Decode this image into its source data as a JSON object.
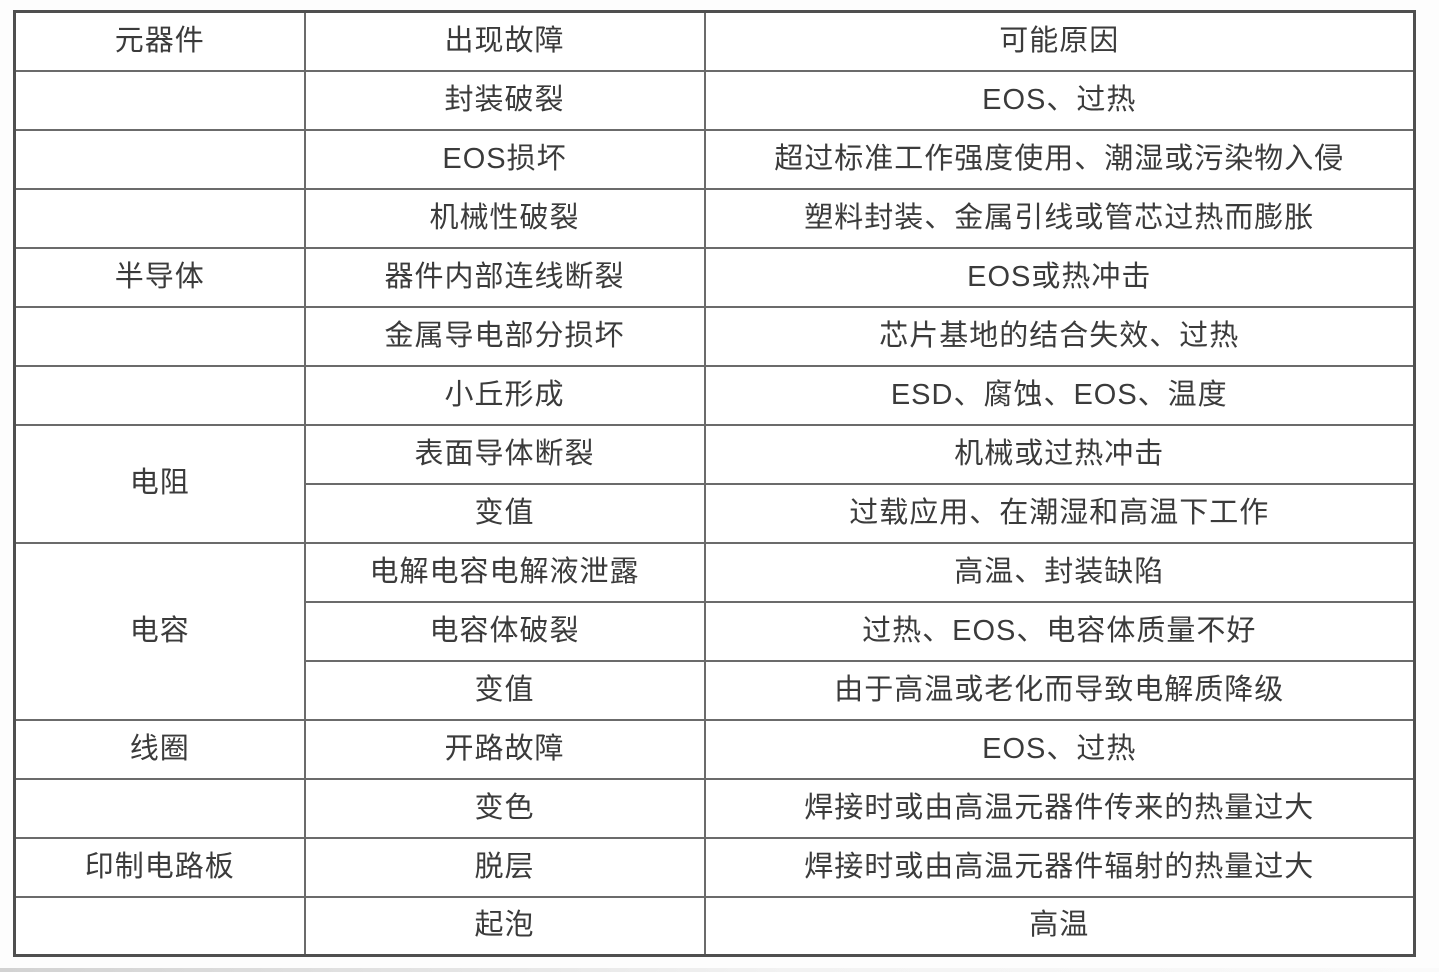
{
  "table": {
    "headers": [
      "元器件",
      "出现故障",
      "可能原因"
    ],
    "groups": [
      {
        "component": "半导体",
        "merged": false,
        "label_row_index": 3,
        "rows": [
          {
            "failure": "封装破裂",
            "cause": "EOS、过热"
          },
          {
            "failure": "EOS损坏",
            "cause": "超过标准工作强度使用、潮湿或污染物入侵"
          },
          {
            "failure": "机械性破裂",
            "cause": "塑料封装、金属引线或管芯过热而膨胀"
          },
          {
            "failure": "器件内部连线断裂",
            "cause": "EOS或热冲击"
          },
          {
            "failure": "金属导电部分损坏",
            "cause": "芯片基地的结合失效、过热"
          },
          {
            "failure": "小丘形成",
            "cause": "ESD、腐蚀、EOS、温度"
          }
        ]
      },
      {
        "component": "电阻",
        "merged": true,
        "label_row_index": 0,
        "rows": [
          {
            "failure": "表面导体断裂",
            "cause": "机械或过热冲击"
          },
          {
            "failure": "变值",
            "cause": "过载应用、在潮湿和高温下工作"
          }
        ]
      },
      {
        "component": "电容",
        "merged": true,
        "label_row_index": 0,
        "rows": [
          {
            "failure": "电解电容电解液泄露",
            "cause": "高温、封装缺陷"
          },
          {
            "failure": "电容体破裂",
            "cause": "过热、EOS、电容体质量不好"
          },
          {
            "failure": "变值",
            "cause": "由于高温或老化而导致电解质降级"
          }
        ]
      },
      {
        "component": "线圈",
        "merged": true,
        "label_row_index": 0,
        "rows": [
          {
            "failure": "开路故障",
            "cause": "EOS、过热"
          }
        ]
      },
      {
        "component": "印制电路板",
        "merged": false,
        "label_row_index": 1,
        "rows": [
          {
            "failure": "变色",
            "cause": "焊接时或由高温元器件传来的热量过大"
          },
          {
            "failure": "脱层",
            "cause": "焊接时或由高温元器件辐射的热量过大"
          },
          {
            "failure": "起泡",
            "cause": "高温"
          }
        ]
      }
    ],
    "colors": {
      "inner_border": "#6b6b6b",
      "outer_border": "#4f4f4f",
      "text": "#3b3b3b",
      "background": "#ffffff"
    }
  }
}
